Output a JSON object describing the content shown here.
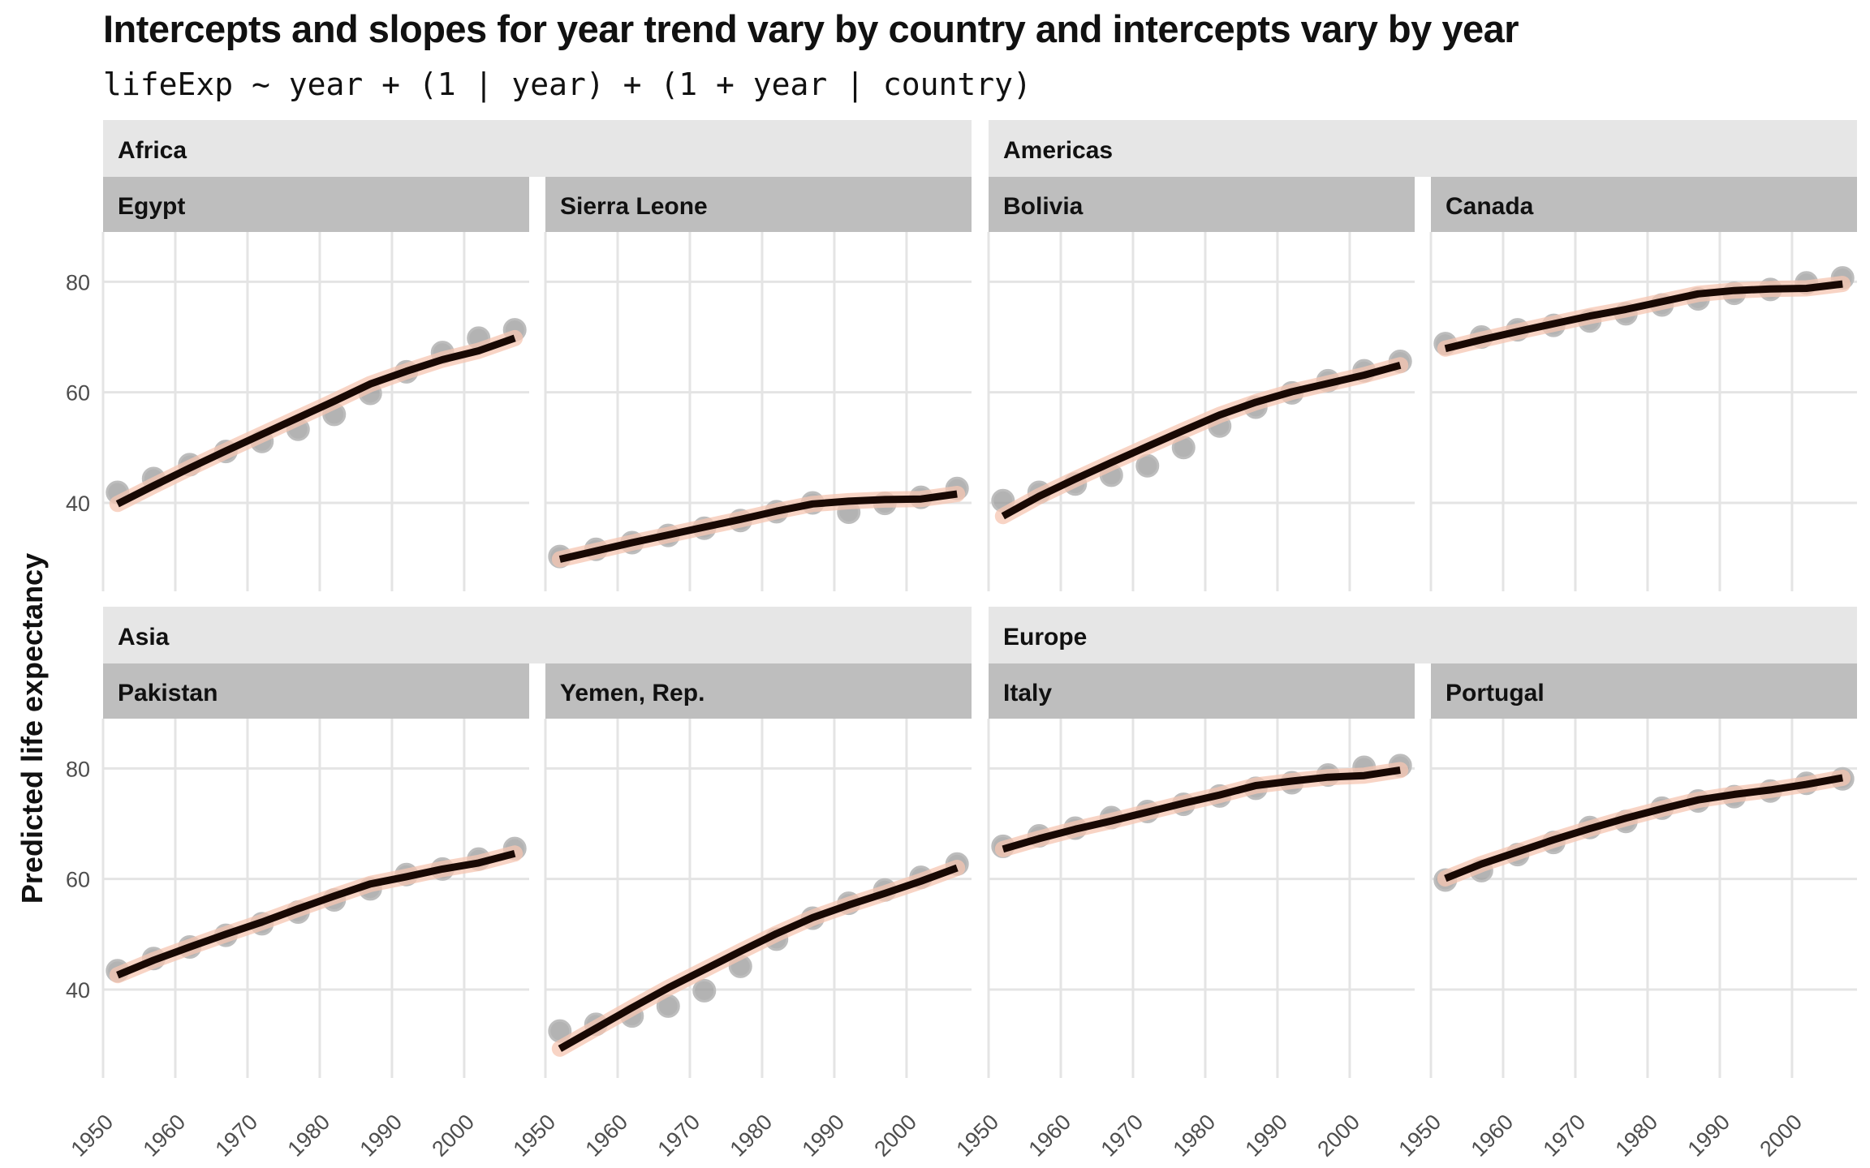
{
  "chart_data": {
    "type": "line",
    "title": "Intercepts and slopes for year trend vary by country and intercepts vary by year",
    "subtitle": "lifeExp ~ year + (1 | year) + (1 + year | country)",
    "xlabel": "",
    "ylabel": "Predicted life expectancy",
    "xlim": [
      1950,
      2009
    ],
    "ylim": [
      24,
      89
    ],
    "x_ticks": [
      "1950",
      "1960",
      "1970",
      "1980",
      "1990",
      "2000"
    ],
    "y_ticks": [
      "40",
      "60",
      "80"
    ],
    "grid": true,
    "colors": {
      "points": "#9a9a9a",
      "fit": "#190904",
      "ribbon": "#f6c5b1",
      "region_strip": "#e6e6e6",
      "country_strip": "#bebebe"
    },
    "regions": [
      {
        "name": "Africa",
        "countries": [
          "Egypt",
          "Sierra Leone"
        ]
      },
      {
        "name": "Americas",
        "countries": [
          "Bolivia",
          "Canada"
        ]
      },
      {
        "name": "Asia",
        "countries": [
          "Pakistan",
          "Yemen, Rep."
        ]
      },
      {
        "name": "Europe",
        "countries": [
          "Italy",
          "Portugal"
        ]
      }
    ],
    "x": [
      1952,
      1957,
      1962,
      1967,
      1972,
      1977,
      1982,
      1987,
      1992,
      1997,
      2002,
      2007
    ],
    "panels": [
      {
        "country": "Egypt",
        "observed": [
          41.9,
          44.4,
          46.9,
          49.3,
          51.1,
          53.3,
          56.0,
          59.8,
          63.7,
          67.2,
          69.8,
          71.3
        ],
        "predicted": [
          39.8,
          43.1,
          46.3,
          49.4,
          52.4,
          55.4,
          58.4,
          61.5,
          63.8,
          65.9,
          67.5,
          69.8
        ]
      },
      {
        "country": "Sierra Leone",
        "observed": [
          30.3,
          31.6,
          32.8,
          34.1,
          35.4,
          36.8,
          38.4,
          40.0,
          38.3,
          39.9,
          41.0,
          42.6
        ],
        "predicted": [
          29.8,
          31.3,
          32.8,
          34.2,
          35.6,
          37.0,
          38.5,
          39.8,
          40.3,
          40.6,
          40.7,
          41.6
        ]
      },
      {
        "country": "Bolivia",
        "observed": [
          40.4,
          41.9,
          43.4,
          45.0,
          46.7,
          50.0,
          53.9,
          57.3,
          59.9,
          62.1,
          63.9,
          65.6
        ],
        "predicted": [
          37.6,
          41.2,
          44.3,
          47.3,
          50.2,
          53.1,
          55.9,
          58.2,
          60.1,
          61.6,
          63.1,
          64.9
        ]
      },
      {
        "country": "Canada",
        "observed": [
          68.8,
          70.0,
          71.3,
          72.1,
          72.9,
          74.2,
          75.8,
          76.9,
          77.9,
          78.6,
          79.8,
          80.7
        ],
        "predicted": [
          67.9,
          69.5,
          71.0,
          72.4,
          73.8,
          75.0,
          76.4,
          77.8,
          78.4,
          78.7,
          78.8,
          79.6
        ]
      },
      {
        "country": "Pakistan",
        "observed": [
          43.4,
          45.6,
          47.7,
          49.8,
          51.9,
          54.0,
          56.2,
          58.2,
          60.8,
          61.8,
          63.6,
          65.5
        ],
        "predicted": [
          42.6,
          45.3,
          47.7,
          50.0,
          52.2,
          54.6,
          56.9,
          59.1,
          60.4,
          61.8,
          62.9,
          64.6
        ]
      },
      {
        "country": "Yemen, Rep.",
        "observed": [
          32.5,
          33.7,
          35.2,
          37.0,
          39.8,
          44.2,
          49.1,
          52.9,
          55.6,
          58.0,
          60.3,
          62.7
        ],
        "predicted": [
          29.3,
          33.0,
          36.7,
          40.3,
          43.6,
          46.9,
          50.1,
          53.0,
          55.3,
          57.4,
          59.6,
          62.0
        ]
      },
      {
        "country": "Italy",
        "observed": [
          65.9,
          67.8,
          69.2,
          71.1,
          72.2,
          73.5,
          75.0,
          76.4,
          77.4,
          78.8,
          80.2,
          80.5
        ],
        "predicted": [
          65.4,
          67.3,
          69.0,
          70.5,
          72.1,
          73.7,
          75.2,
          76.9,
          77.7,
          78.4,
          78.7,
          79.7
        ]
      },
      {
        "country": "Portugal",
        "observed": [
          59.8,
          61.5,
          64.4,
          66.6,
          69.3,
          70.4,
          72.8,
          74.1,
          74.9,
          75.9,
          77.3,
          78.1
        ],
        "predicted": [
          60.1,
          62.7,
          64.9,
          67.1,
          69.1,
          71.0,
          72.7,
          74.3,
          75.3,
          76.1,
          77.1,
          78.3
        ]
      }
    ]
  }
}
